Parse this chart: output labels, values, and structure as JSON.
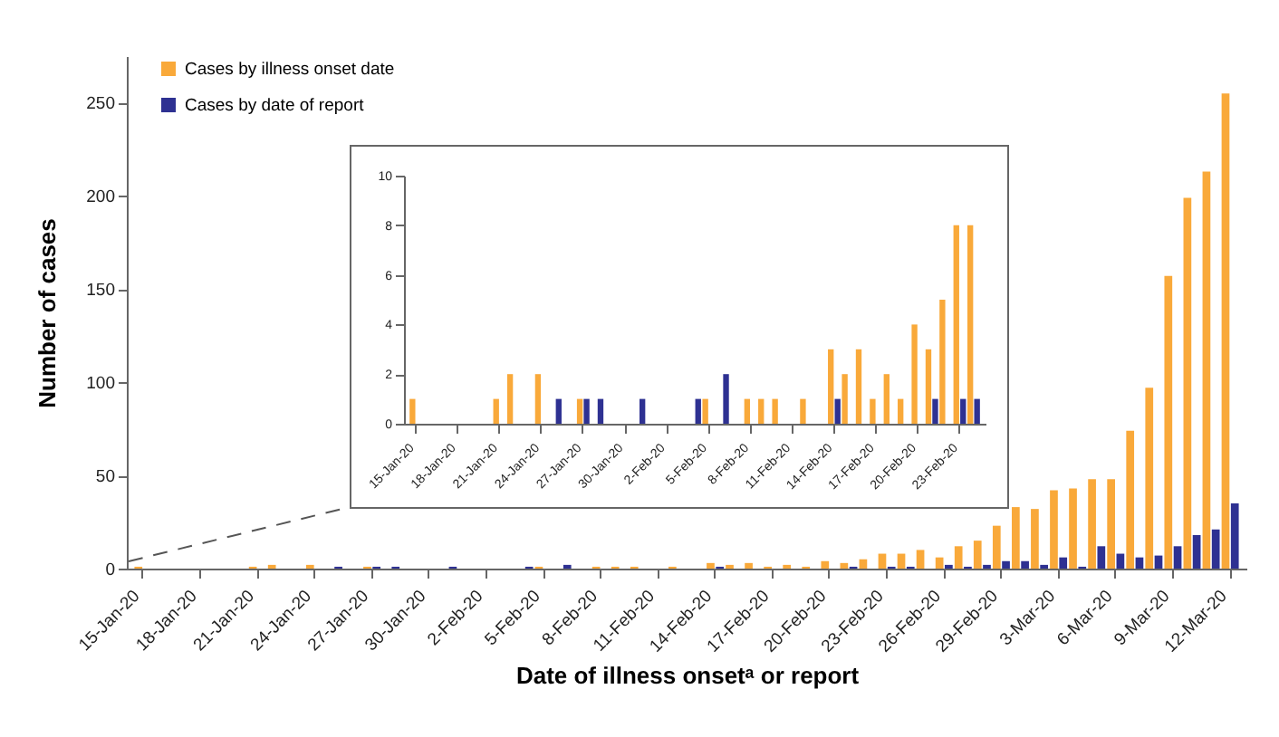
{
  "chart_data": [
    {
      "type": "bar",
      "xlabel": "Date of illness onsetᵃ or report",
      "ylabel": "Number of cases",
      "legend": "top left",
      "grid": false,
      "categories": [
        "15-Jan-20",
        null,
        null,
        "18-Jan-20",
        null,
        null,
        "21-Jan-20",
        null,
        null,
        "24-Jan-20",
        null,
        null,
        "27-Jan-20",
        null,
        null,
        "30-Jan-20",
        null,
        null,
        "2-Feb-20",
        null,
        null,
        "5-Feb-20",
        null,
        null,
        "8-Feb-20",
        null,
        null,
        "11-Feb-20",
        null,
        null,
        "14-Feb-20",
        null,
        null,
        "17-Feb-20",
        null,
        null,
        "20-Feb-20",
        null,
        null,
        "23-Feb-20",
        null,
        null,
        "26-Feb-20",
        null,
        null,
        "29-Feb-20",
        null,
        null,
        "3-Mar-20",
        null,
        null,
        "6-Mar-20",
        null,
        null,
        "9-Mar-20",
        null,
        null,
        "12-Mar-20"
      ],
      "series": [
        {
          "name": "Cases by illness onset date",
          "color": "#f9a93a",
          "values": [
            1,
            0,
            0,
            0,
            0,
            0,
            1,
            2,
            0,
            2,
            0,
            0,
            1,
            0,
            0,
            0,
            0,
            0,
            0,
            0,
            0,
            1,
            0,
            0,
            1,
            1,
            1,
            0,
            1,
            0,
            3,
            2,
            3,
            1,
            2,
            1,
            4,
            3,
            5,
            8,
            8,
            10,
            6,
            12,
            15,
            23,
            33,
            32,
            42,
            43,
            48,
            48,
            74,
            97,
            157,
            199,
            213,
            255
          ]
        },
        {
          "name": "Cases by date of report",
          "color": "#2e3192",
          "values": [
            0,
            0,
            0,
            0,
            0,
            0,
            0,
            0,
            0,
            0,
            1,
            0,
            1,
            1,
            0,
            0,
            1,
            0,
            0,
            0,
            1,
            0,
            2,
            0,
            0,
            0,
            0,
            0,
            0,
            0,
            1,
            0,
            0,
            0,
            0,
            0,
            0,
            1,
            0,
            1,
            1,
            0,
            2,
            1,
            2,
            4,
            4,
            2,
            6,
            1,
            12,
            8,
            6,
            7,
            12,
            18,
            21,
            35
          ]
        }
      ],
      "ylim": [
        0,
        275
      ],
      "yticks": [
        0,
        50,
        100,
        150,
        200,
        250
      ]
    },
    {
      "type": "bar",
      "grid": false,
      "categories": [
        "15-Jan-20",
        null,
        null,
        "18-Jan-20",
        null,
        null,
        "21-Jan-20",
        null,
        null,
        "24-Jan-20",
        null,
        null,
        "27-Jan-20",
        null,
        null,
        "30-Jan-20",
        null,
        null,
        "2-Feb-20",
        null,
        null,
        "5-Feb-20",
        null,
        null,
        "8-Feb-20",
        null,
        null,
        "11-Feb-20",
        null,
        null,
        "14-Feb-20",
        null,
        null,
        "17-Feb-20",
        null,
        null,
        "20-Feb-20",
        null,
        null,
        "23-Feb-20",
        null
      ],
      "series": [
        {
          "color": "#f9a93a",
          "values": [
            1,
            0,
            0,
            0,
            0,
            0,
            1,
            2,
            0,
            2,
            0,
            0,
            1,
            0,
            0,
            0,
            0,
            0,
            0,
            0,
            0,
            1,
            0,
            0,
            1,
            1,
            1,
            0,
            1,
            0,
            3,
            2,
            3,
            1,
            2,
            1,
            4,
            3,
            5,
            8,
            8
          ]
        },
        {
          "color": "#2e3192",
          "values": [
            0,
            0,
            0,
            0,
            0,
            0,
            0,
            0,
            0,
            0,
            1,
            0,
            1,
            1,
            0,
            0,
            1,
            0,
            0,
            0,
            1,
            0,
            2,
            0,
            0,
            0,
            0,
            0,
            0,
            0,
            1,
            0,
            0,
            0,
            0,
            0,
            0,
            1,
            0,
            1,
            1
          ]
        }
      ],
      "ylim": [
        0,
        10
      ],
      "yticks": [
        0,
        2,
        4,
        6,
        8,
        10
      ]
    }
  ]
}
